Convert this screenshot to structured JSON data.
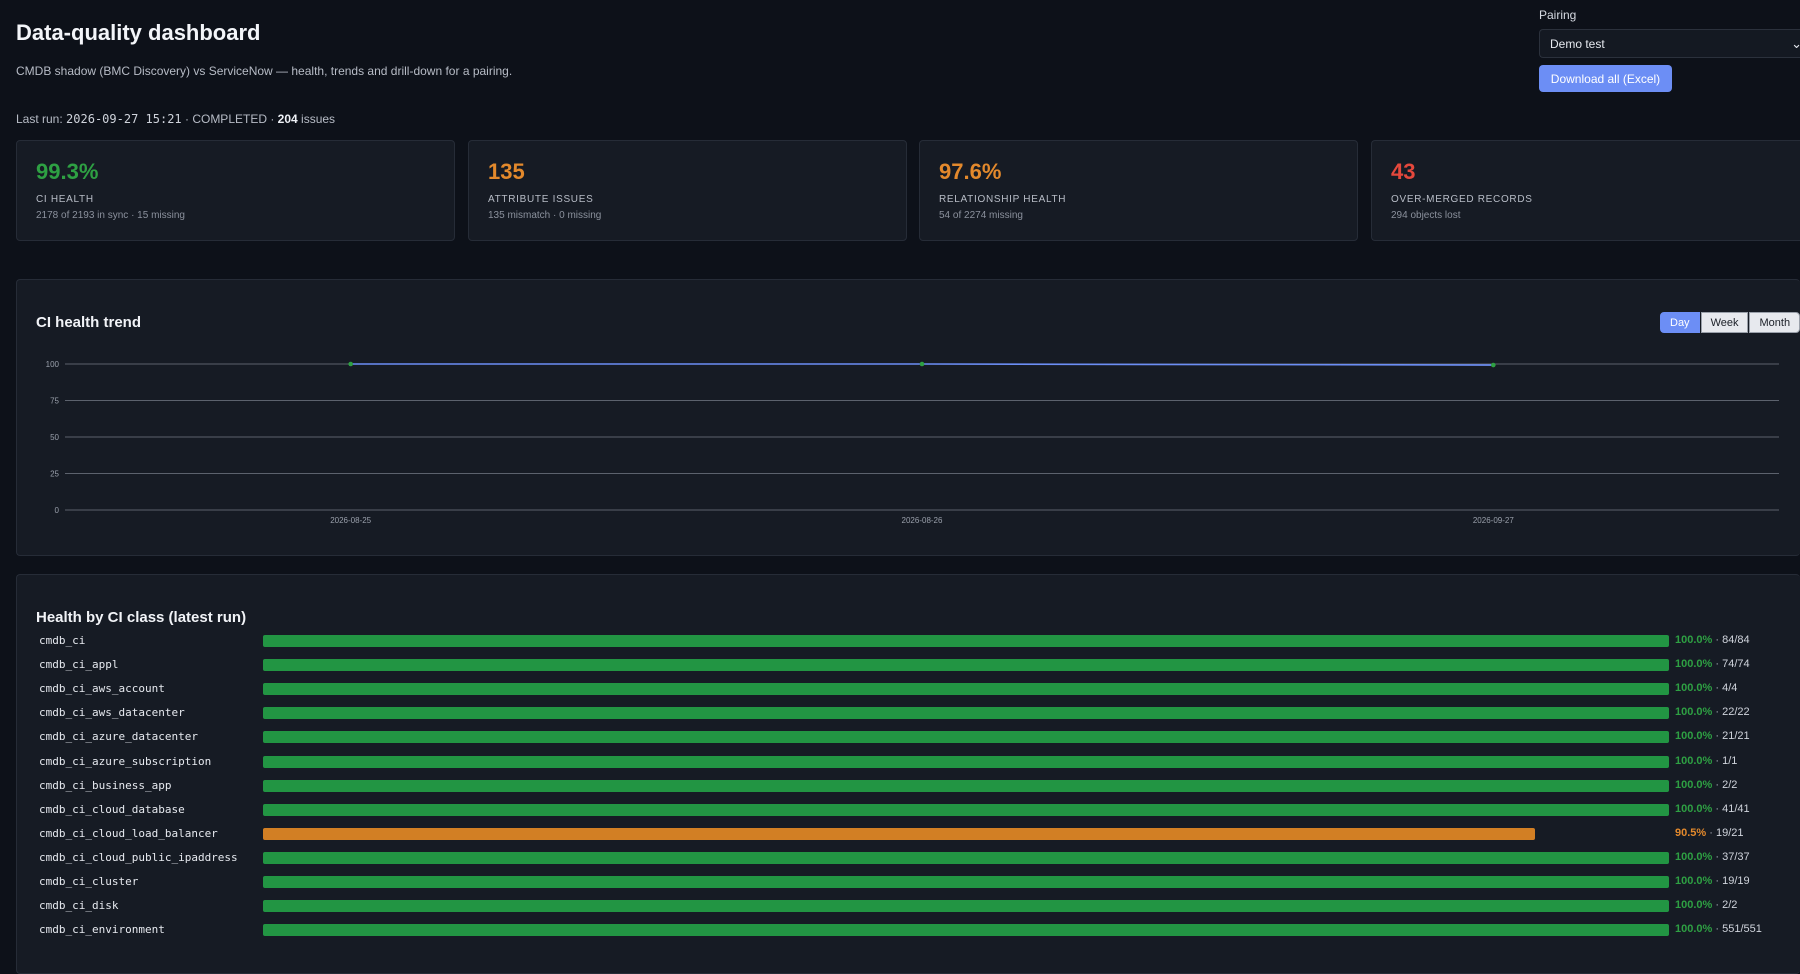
{
  "header": {
    "title": "Data-quality dashboard",
    "subtitle": "CMDB shadow (BMC Discovery) vs ServiceNow — health, trends and drill-down for a pairing.",
    "last_run_prefix": "Last run:",
    "last_run_time": "2026-09-27 15:21",
    "last_run_status": "· COMPLETED ·",
    "issues_count": "204",
    "issues_suffix": "issues"
  },
  "controls": {
    "pairing_label": "Pairing",
    "pairing_value": "Demo test",
    "download_label": "Download all (Excel)"
  },
  "kpis": [
    {
      "value": "99.3%",
      "label": "CI HEALTH",
      "sub": "2178 of 2193 in sync · 15 missing",
      "color": "#2ea043"
    },
    {
      "value": "135",
      "label": "ATTRIBUTE ISSUES",
      "sub": "135 mismatch · 0 missing",
      "color": "#e3892c"
    },
    {
      "value": "97.6%",
      "label": "RELATIONSHIP HEALTH",
      "sub": "54 of 2274 missing",
      "color": "#e3892c"
    },
    {
      "value": "43",
      "label": "OVER-MERGED RECORDS",
      "sub": "294 objects lost",
      "color": "#e5483c"
    }
  ],
  "trend": {
    "title": "CI health trend",
    "ranges": [
      "Day",
      "Week",
      "Month"
    ],
    "active_range": "Day",
    "line_color": "#6c8ef5",
    "point_color": "#2ea043"
  },
  "chart_data": {
    "type": "line",
    "x": [
      "2026-08-25",
      "2026-08-26",
      "2026-09-27"
    ],
    "series": [
      {
        "values": [
          100,
          100,
          99.3
        ]
      }
    ],
    "ylim": [
      0,
      100
    ],
    "yticks": [
      0,
      25,
      50,
      75,
      100
    ],
    "grid": true
  },
  "class_health": {
    "title": "Health by CI class (latest run)",
    "good_color": "#229543",
    "warn_color": "#d27f24",
    "rows": [
      {
        "name": "cmdb_ci",
        "pct": 100.0,
        "pct_label": "100.0%",
        "count": "84/84"
      },
      {
        "name": "cmdb_ci_appl",
        "pct": 100.0,
        "pct_label": "100.0%",
        "count": "74/74"
      },
      {
        "name": "cmdb_ci_aws_account",
        "pct": 100.0,
        "pct_label": "100.0%",
        "count": "4/4"
      },
      {
        "name": "cmdb_ci_aws_datacenter",
        "pct": 100.0,
        "pct_label": "100.0%",
        "count": "22/22"
      },
      {
        "name": "cmdb_ci_azure_datacenter",
        "pct": 100.0,
        "pct_label": "100.0%",
        "count": "21/21"
      },
      {
        "name": "cmdb_ci_azure_subscription",
        "pct": 100.0,
        "pct_label": "100.0%",
        "count": "1/1"
      },
      {
        "name": "cmdb_ci_business_app",
        "pct": 100.0,
        "pct_label": "100.0%",
        "count": "2/2"
      },
      {
        "name": "cmdb_ci_cloud_database",
        "pct": 100.0,
        "pct_label": "100.0%",
        "count": "41/41"
      },
      {
        "name": "cmdb_ci_cloud_load_balancer",
        "pct": 90.5,
        "pct_label": "90.5%",
        "count": "19/21"
      },
      {
        "name": "cmdb_ci_cloud_public_ipaddress",
        "pct": 100.0,
        "pct_label": "100.0%",
        "count": "37/37"
      },
      {
        "name": "cmdb_ci_cluster",
        "pct": 100.0,
        "pct_label": "100.0%",
        "count": "19/19"
      },
      {
        "name": "cmdb_ci_disk",
        "pct": 100.0,
        "pct_label": "100.0%",
        "count": "2/2"
      },
      {
        "name": "cmdb_ci_environment",
        "pct": 100.0,
        "pct_label": "100.0%",
        "count": "551/551"
      }
    ]
  }
}
